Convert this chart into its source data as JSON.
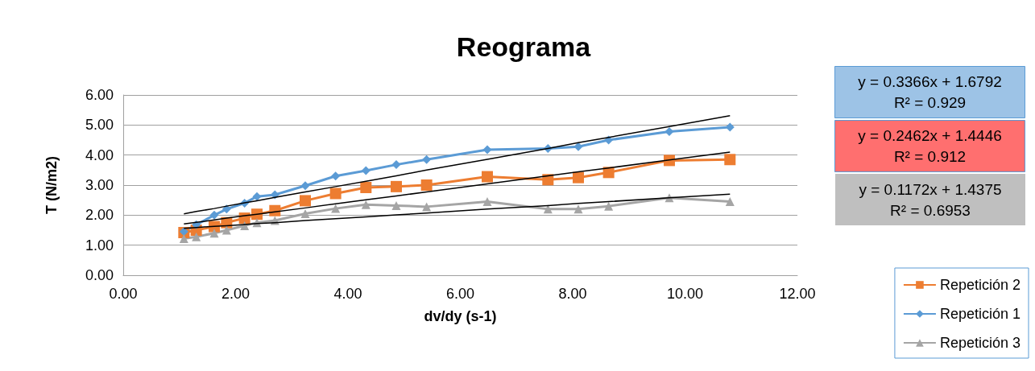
{
  "chart_data": {
    "type": "line",
    "title": "Reograma",
    "xlabel": "dv/dy (s-1)",
    "ylabel": "T (N/m2)",
    "x": [
      1.08,
      1.3,
      1.62,
      1.84,
      2.16,
      2.38,
      2.7,
      3.24,
      3.78,
      4.32,
      4.86,
      5.4,
      6.48,
      7.56,
      8.1,
      8.64,
      9.72,
      10.8
    ],
    "series": [
      {
        "name": "Repetición 2",
        "color": "#ed7d31",
        "marker": "square",
        "values": [
          1.42,
          1.5,
          1.62,
          1.75,
          1.9,
          2.03,
          2.15,
          2.48,
          2.72,
          2.92,
          2.95,
          3.0,
          3.28,
          3.18,
          3.25,
          3.42,
          3.82,
          3.85
        ]
      },
      {
        "name": "Repetición 1",
        "color": "#5b9bd5",
        "marker": "diamond",
        "values": [
          1.45,
          1.68,
          2.0,
          2.2,
          2.4,
          2.62,
          2.68,
          2.98,
          3.3,
          3.48,
          3.68,
          3.85,
          4.18,
          4.22,
          4.28,
          4.5,
          4.78,
          4.93
        ]
      },
      {
        "name": "Repetición 3",
        "color": "#a5a5a5",
        "marker": "triangle",
        "values": [
          1.22,
          1.28,
          1.4,
          1.5,
          1.65,
          1.75,
          1.82,
          2.05,
          2.22,
          2.35,
          2.32,
          2.28,
          2.45,
          2.2,
          2.2,
          2.3,
          2.58,
          2.45
        ]
      },
      {
        "type": "line",
        "color": "#000000",
        "marker": "none",
        "values": [
          2.04,
          2.12,
          2.22,
          2.3,
          2.41,
          2.48,
          2.59,
          2.77,
          2.95,
          3.13,
          3.31,
          3.5,
          3.86,
          4.22,
          4.41,
          4.59,
          4.95,
          5.31
        ]
      },
      {
        "type": "line",
        "color": "#000000",
        "marker": "none",
        "values": [
          1.71,
          1.76,
          1.84,
          1.9,
          1.98,
          2.03,
          2.11,
          2.24,
          2.38,
          2.51,
          2.64,
          2.77,
          3.04,
          3.31,
          3.44,
          3.57,
          3.84,
          4.1
        ]
      },
      {
        "type": "line",
        "color": "#000000",
        "marker": "none",
        "values": [
          1.56,
          1.59,
          1.63,
          1.65,
          1.69,
          1.72,
          1.75,
          1.82,
          1.88,
          1.94,
          2.01,
          2.07,
          2.2,
          2.32,
          2.39,
          2.45,
          2.58,
          2.7
        ]
      }
    ],
    "xlim": [
      0,
      12
    ],
    "xticks": [
      {
        "value": 0,
        "label": "0.00"
      },
      {
        "value": 2,
        "label": "2.00"
      },
      {
        "value": 4,
        "label": "4.00"
      },
      {
        "value": 6,
        "label": "6.00"
      },
      {
        "value": 8,
        "label": "8.00"
      },
      {
        "value": 10,
        "label": "10.00"
      },
      {
        "value": 12,
        "label": "12.00"
      }
    ],
    "ylim": [
      0,
      6
    ],
    "yticks": [
      {
        "value": 0,
        "label": "0.00"
      },
      {
        "value": 1,
        "label": "1.00"
      },
      {
        "value": 2,
        "label": "2.00"
      },
      {
        "value": 3,
        "label": "3.00"
      },
      {
        "value": 4,
        "label": "4.00"
      },
      {
        "value": 5,
        "label": "5.00"
      },
      {
        "value": 6,
        "label": "6.00"
      }
    ],
    "annotations": [
      "y = 0.3366x + 1.6792\nR² = 0.929",
      "y = 0.2462x + 1.4446\nR² = 0.912",
      "y = 0.1172x + 1.4375\nR² = 0.6953"
    ],
    "grid": "y",
    "legend": "bottom right"
  }
}
